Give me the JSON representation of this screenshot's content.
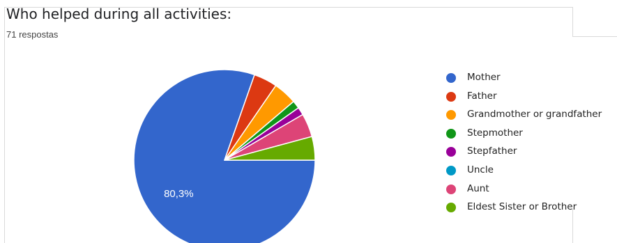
{
  "header": {
    "title": "Who helped during all activities:",
    "subtitle": "71 respostas"
  },
  "chart_data": {
    "type": "pie",
    "title": "Who helped during all activities:",
    "categories": [
      "Mother",
      "Father",
      "Grandmother or grandfather",
      "Stepmother",
      "Stepfather",
      "Uncle",
      "Aunt",
      "Eldest Sister or Brother"
    ],
    "values": [
      80.3,
      4.2,
      4.2,
      1.4,
      1.4,
      0,
      4.2,
      4.2
    ],
    "colors": [
      "#3366cc",
      "#dc3912",
      "#ff9900",
      "#109618",
      "#990099",
      "#0099c6",
      "#dd4477",
      "#66aa00"
    ],
    "data_labels": [
      "80,3%",
      "",
      "",
      "",
      "",
      "",
      "",
      ""
    ],
    "legend_position": "right"
  }
}
